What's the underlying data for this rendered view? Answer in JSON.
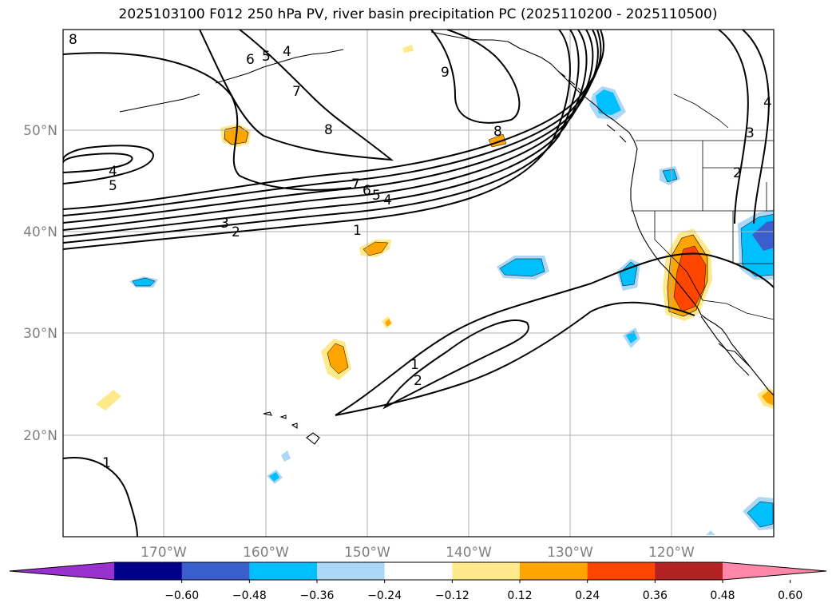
{
  "title": "2025103100 F012 250 hPa PV, river basin precipitation PC (2025110200 - 2025110500)",
  "lat_labels": [
    "50°N",
    "40°N",
    "30°N",
    "20°N"
  ],
  "lon_labels": [
    "170°W",
    "160°W",
    "150°W",
    "140°W",
    "130°W",
    "120°W"
  ],
  "colorbar": {
    "ticks": [
      "−0.60",
      "−0.48",
      "−0.36",
      "−0.24",
      "−0.12",
      "0.12",
      "0.24",
      "0.36",
      "0.48",
      "0.60"
    ],
    "colors": [
      "#9932cc",
      "#00008b",
      "#3a5fcd",
      "#00bfff",
      "#add8f5",
      "#ffffff",
      "#ffe98a",
      "#ffa500",
      "#ff4500",
      "#b22222",
      "#ff88aa"
    ]
  },
  "contour_labels": {
    "c8a": "8",
    "c6a": "6",
    "c5a": "5",
    "c4a": "4",
    "c9": "9",
    "c7a": "7",
    "c8b": "8",
    "c8c": "8",
    "c4b": "4",
    "c5b": "5",
    "c7b": "7",
    "c6b": "6",
    "c5c": "5",
    "c4c": "4",
    "c3a": "3",
    "c2a": "2",
    "c1a": "1",
    "c1b": "1",
    "c2b": "2",
    "c1c": "1",
    "c2c": "2",
    "c3b": "3",
    "c4d": "4"
  }
}
